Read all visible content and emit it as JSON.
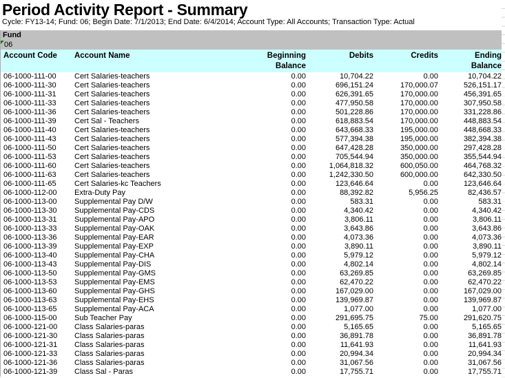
{
  "report": {
    "title": "Period Activity Report - Summary",
    "parameters": "Cycle: FY13-14; Fund: 06; Begin Date: 7/1/2013; End Date: 6/4/2014; Account Type: All Accounts; Transaction Type: Actual",
    "group": {
      "label": "Fund",
      "value": "06"
    }
  },
  "icons": {
    "cell_flag": "cell-flag-triangle-icon"
  },
  "colors": {
    "band_bg": "#c0c0c0",
    "head_bg": "#ccffff",
    "flag_green": "#008000"
  },
  "table": {
    "columns": [
      {
        "line1": "Account Code",
        "line2": ""
      },
      {
        "line1": "Account Name",
        "line2": ""
      },
      {
        "line1": "Beginning",
        "line2": "Balance"
      },
      {
        "line1": "Debits",
        "line2": ""
      },
      {
        "line1": "Credits",
        "line2": ""
      },
      {
        "line1": "Ending",
        "line2": "Balance"
      }
    ],
    "rows": [
      [
        "06-1000-111-00",
        "Cert Salaries-teachers",
        "0.00",
        "10,704.22",
        "0.00",
        "10,704.22"
      ],
      [
        "06-1000-111-30",
        "Cert Salaries-teachers",
        "0.00",
        "696,151.24",
        "170,000.07",
        "526,151.17"
      ],
      [
        "06-1000-111-31",
        "Cert Salaries-teachers",
        "0.00",
        "626,391.65",
        "170,000.00",
        "456,391.65"
      ],
      [
        "06-1000-111-33",
        "Cert Salaries-teachers",
        "0.00",
        "477,950.58",
        "170,000.00",
        "307,950.58"
      ],
      [
        "06-1000-111-36",
        "Cert Salaries-teachers",
        "0.00",
        "501,228.86",
        "170,000.00",
        "331,228.86"
      ],
      [
        "06-1000-111-39",
        "Cert Sal - Teachers",
        "0.00",
        "618,883.54",
        "170,000.00",
        "448,883.54"
      ],
      [
        "06-1000-111-40",
        "Cert Salaries-teachers",
        "0.00",
        "643,668.33",
        "195,000.00",
        "448,668.33"
      ],
      [
        "06-1000-111-43",
        "Cert Salaries-teachers",
        "0.00",
        "577,394.38",
        "195,000.00",
        "382,394.38"
      ],
      [
        "06-1000-111-50",
        "Cert Salaries-teachers",
        "0.00",
        "647,428.28",
        "350,000.00",
        "297,428.28"
      ],
      [
        "06-1000-111-53",
        "Cert Salaries-teachers",
        "0.00",
        "705,544.94",
        "350,000.00",
        "355,544.94"
      ],
      [
        "06-1000-111-60",
        "Cert Salaries-teachers",
        "0.00",
        "1,064,818.32",
        "600,050.00",
        "464,768.32"
      ],
      [
        "06-1000-111-63",
        "Cert Salaries-teachers",
        "0.00",
        "1,242,330.50",
        "600,000.00",
        "642,330.50"
      ],
      [
        "06-1000-111-65",
        "Cert Salaries-kc Teachers",
        "0.00",
        "123,646.64",
        "0.00",
        "123,646.64"
      ],
      [
        "06-1000-112-00",
        "Extra-Duty Pay",
        "0.00",
        "88,392.82",
        "5,956.25",
        "82,436.57"
      ],
      [
        "06-1000-113-00",
        "Supplemental Pay D/W",
        "0.00",
        "583.31",
        "0.00",
        "583.31"
      ],
      [
        "06-1000-113-30",
        "Supplemental Pay-CDS",
        "0.00",
        "4,340.42",
        "0.00",
        "4,340.42"
      ],
      [
        "06-1000-113-31",
        "Supplemental Pay-APO",
        "0.00",
        "3,806.11",
        "0.00",
        "3,806.11"
      ],
      [
        "06-1000-113-33",
        "Supplemental Pay-OAK",
        "0.00",
        "3,643.86",
        "0.00",
        "3,643.86"
      ],
      [
        "06-1000-113-36",
        "Supplemental Pay-EAR",
        "0.00",
        "4,073.36",
        "0.00",
        "4,073.36"
      ],
      [
        "06-1000-113-39",
        "Supplemental Pay-EXP",
        "0.00",
        "3,890.11",
        "0.00",
        "3,890.11"
      ],
      [
        "06-1000-113-40",
        "Supplemental Pay-CHA",
        "0.00",
        "5,979.12",
        "0.00",
        "5,979.12"
      ],
      [
        "06-1000-113-43",
        "Supplemental Pay-DIS",
        "0.00",
        "4,802.14",
        "0.00",
        "4,802.14"
      ],
      [
        "06-1000-113-50",
        "Supplemental Pay-GMS",
        "0.00",
        "63,269.85",
        "0.00",
        "63,269.85"
      ],
      [
        "06-1000-113-53",
        "Supplemental Pay-EMS",
        "0.00",
        "62,470.22",
        "0.00",
        "62,470.22"
      ],
      [
        "06-1000-113-60",
        "Supplemental Pay-GHS",
        "0.00",
        "167,029.00",
        "0.00",
        "167,029.00"
      ],
      [
        "06-1000-113-63",
        "Supplemental Pay-EHS",
        "0.00",
        "139,969.87",
        "0.00",
        "139,969.87"
      ],
      [
        "06-1000-113-65",
        "Supplemental Pay-ACA",
        "0.00",
        "1,077.00",
        "0.00",
        "1,077.00"
      ],
      [
        "06-1000-115-00",
        "Sub Teacher Pay",
        "0.00",
        "291,695.75",
        "75.00",
        "291,620.75"
      ],
      [
        "06-1000-121-00",
        "Class Salaries-paras",
        "0.00",
        "5,165.65",
        "0.00",
        "5,165.65"
      ],
      [
        "06-1000-121-30",
        "Class Salaries-paras",
        "0.00",
        "36,891.78",
        "0.00",
        "36,891.78"
      ],
      [
        "06-1000-121-31",
        "Class Salaries-paras",
        "0.00",
        "11,641.93",
        "0.00",
        "11,641.93"
      ],
      [
        "06-1000-121-33",
        "Class Salaries-paras",
        "0.00",
        "20,994.34",
        "0.00",
        "20,994.34"
      ],
      [
        "06-1000-121-36",
        "Class Salaries-paras",
        "0.00",
        "31,067.56",
        "0.00",
        "31,067.56"
      ],
      [
        "06-1000-121-39",
        "Class Sal - Paras",
        "0.00",
        "17,755.71",
        "0.00",
        "17,755.71"
      ]
    ]
  }
}
